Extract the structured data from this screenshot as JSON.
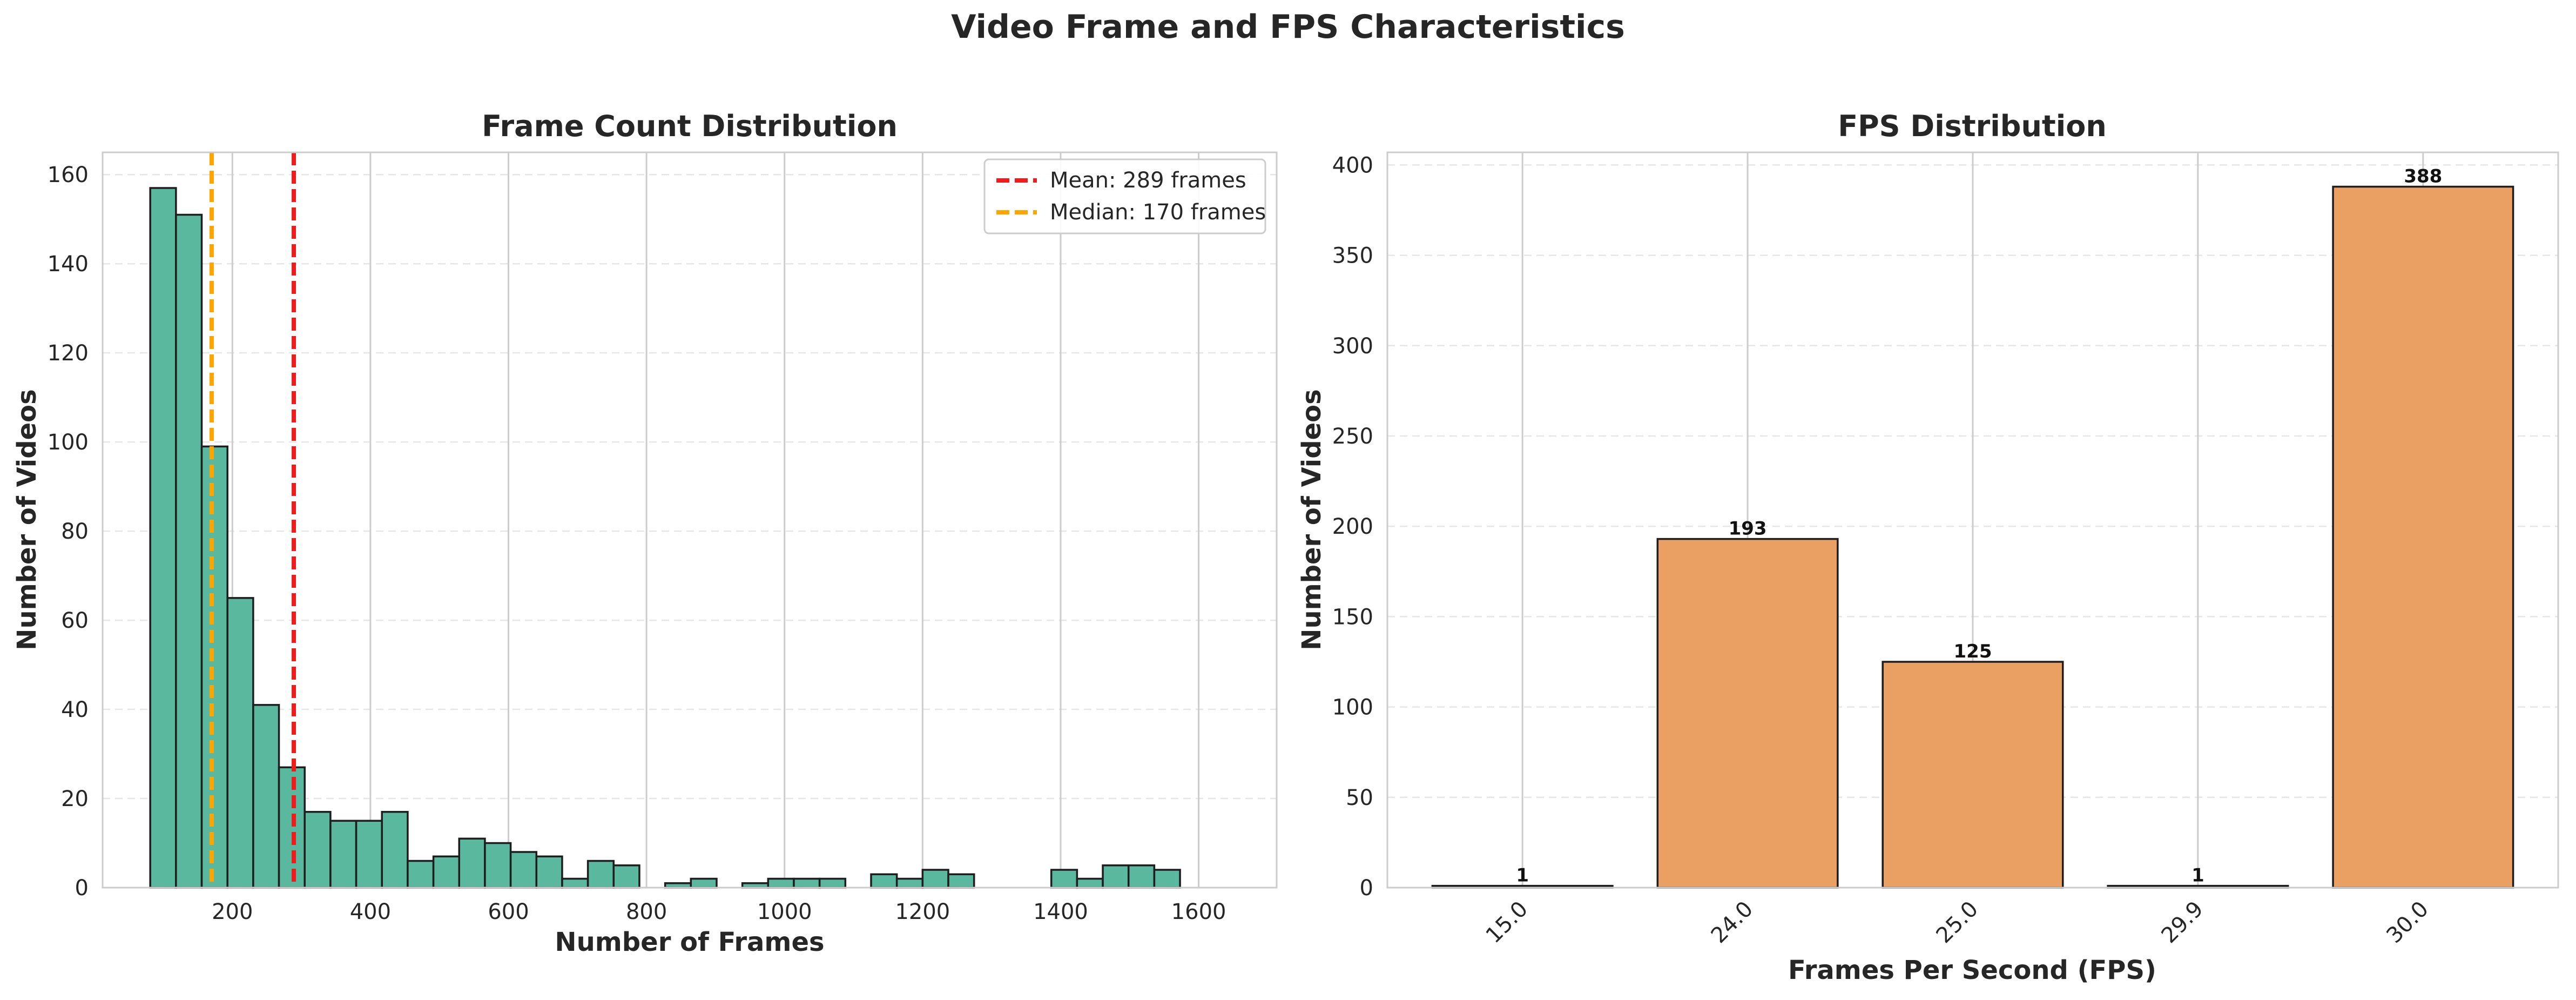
{
  "figure": {
    "title": "Video Frame and FPS Characteristics"
  },
  "chart_data": [
    {
      "type": "bar",
      "subtype": "histogram",
      "title": "Frame Count Distribution",
      "xlabel": "Number of Frames",
      "ylabel": "Number of Videos",
      "xlim": [
        12,
        1713
      ],
      "ylim": [
        0,
        165
      ],
      "xticks": [
        200,
        400,
        600,
        800,
        1000,
        1200,
        1400,
        1600
      ],
      "yticks": [
        0,
        20,
        40,
        60,
        80,
        100,
        120,
        140,
        160
      ],
      "grid": "both",
      "bin_edges": [
        81,
        118.3,
        155.6,
        192.9,
        230.2,
        267.5,
        304.8,
        342.1,
        379.4,
        416.7,
        454,
        491.3,
        528.6,
        565.9,
        603.2,
        640.5,
        677.8,
        715.1,
        752.4,
        789.7,
        827,
        864.3,
        901.6,
        938.9,
        976.2,
        1013.5,
        1050.8,
        1088.1,
        1125.4,
        1162.7,
        1200,
        1237.3,
        1274.6,
        1311.9,
        1349.2,
        1386.5,
        1423.8,
        1461.1,
        1498.4,
        1535.7,
        1573,
        1610.3,
        1647.6
      ],
      "values": [
        157,
        151,
        99,
        65,
        41,
        27,
        17,
        15,
        15,
        17,
        6,
        7,
        11,
        10,
        8,
        7,
        2,
        6,
        5,
        0,
        1,
        2,
        0,
        1,
        2,
        2,
        2,
        0,
        3,
        2,
        4,
        3,
        0,
        0,
        0,
        4,
        2,
        5,
        5,
        4,
        0,
        0
      ],
      "color": "#5ab89f",
      "reference_lines": [
        {
          "name": "Mean: 289 frames",
          "x": 289,
          "color": "#ee1c1c",
          "style": "dashed"
        },
        {
          "name": "Median: 170 frames",
          "x": 170,
          "color": "#ffa500",
          "style": "dashed"
        }
      ],
      "legend": "top-right"
    },
    {
      "type": "bar",
      "title": "FPS Distribution",
      "xlabel": "Frames Per Second (FPS)",
      "ylabel": "Number of Videos",
      "categories": [
        "15.0",
        "24.0",
        "25.0",
        "29.9",
        "30.0"
      ],
      "values": [
        1,
        193,
        125,
        1,
        388
      ],
      "data_labels": [
        "1",
        "193",
        "125",
        "1",
        "388"
      ],
      "ylim": [
        0,
        407
      ],
      "yticks": [
        0,
        50,
        100,
        150,
        200,
        250,
        300,
        350,
        400
      ],
      "xtick_rotation": 45,
      "grid": "both",
      "color": "#eaa062"
    }
  ]
}
